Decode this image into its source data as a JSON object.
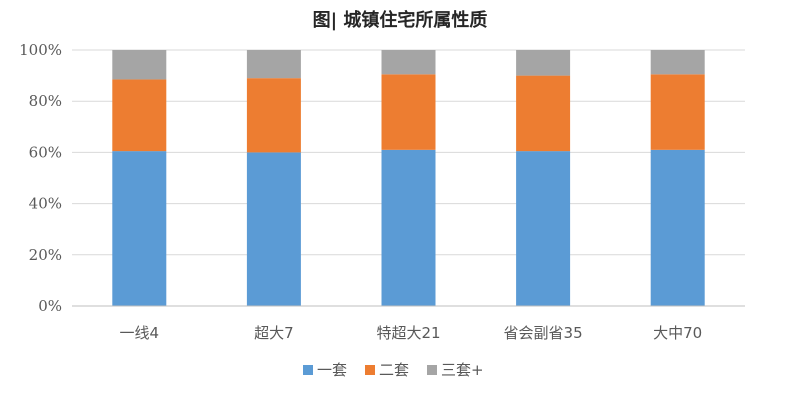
{
  "chart_data": {
    "type": "bar",
    "stacked": true,
    "title": "图| 城镇住宅所属性质",
    "categories": [
      "一线4",
      "超大7",
      "特超大21",
      "省会副省35",
      "大中70"
    ],
    "series": [
      {
        "name": "一套",
        "color": "#5b9bd5",
        "values": [
          60.5,
          60.0,
          61.0,
          60.5,
          61.0
        ]
      },
      {
        "name": "二套",
        "color": "#ed7d31",
        "values": [
          28.0,
          29.0,
          29.5,
          29.5,
          29.5
        ]
      },
      {
        "name": "三套+",
        "color": "#a5a5a5",
        "values": [
          11.5,
          11.0,
          9.5,
          10.0,
          9.5
        ]
      }
    ],
    "yticks": [
      "0%",
      "20%",
      "40%",
      "60%",
      "80%",
      "100%"
    ],
    "ylim": [
      0,
      100
    ],
    "grid": true,
    "legend_position": "bottom"
  }
}
